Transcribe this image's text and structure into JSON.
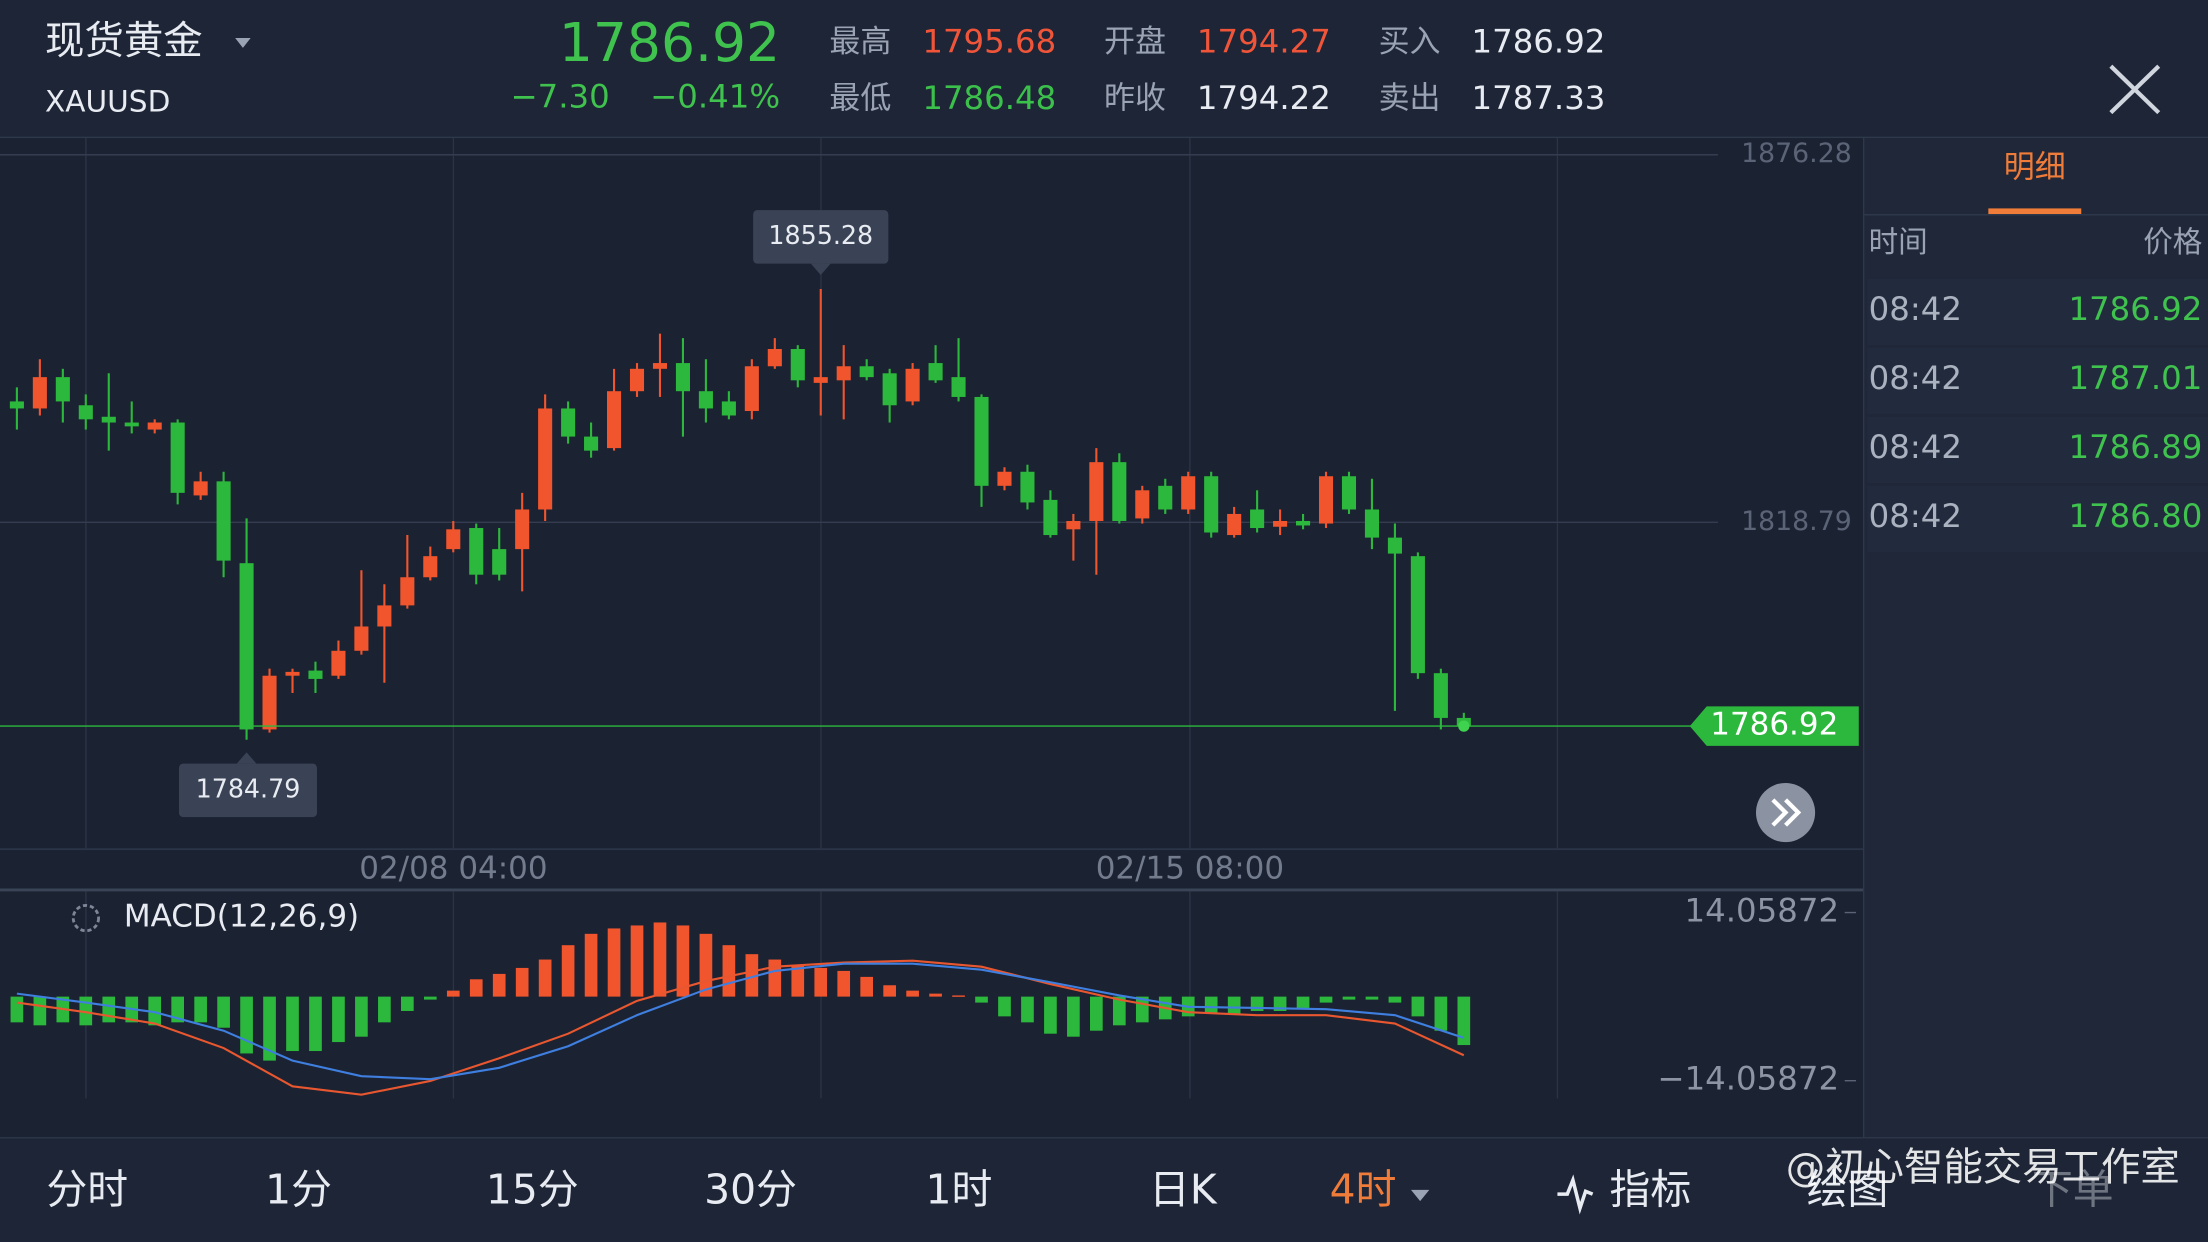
{
  "header": {
    "title": "现货黄金",
    "symbol": "XAUUSD",
    "price": "1786.92",
    "change": "−7.30",
    "change_pct": "−0.41%",
    "stats": [
      {
        "label": "最高",
        "value": "1795.68",
        "color": "#f0553a"
      },
      {
        "label": "最低",
        "value": "1786.48",
        "color": "#3cc04c"
      },
      {
        "label": "开盘",
        "value": "1794.27",
        "color": "#f0553a"
      },
      {
        "label": "昨收",
        "value": "1794.22",
        "color": "#e8ecf2"
      },
      {
        "label": "买入",
        "value": "1786.92",
        "color": "#e8ecf2"
      },
      {
        "label": "卖出",
        "value": "1787.33",
        "color": "#e8ecf2"
      }
    ]
  },
  "chart_data": [
    {
      "type": "candlestick",
      "up_color": "#f0552e",
      "down_color": "#2cb83c",
      "open": [
        1837.7,
        1836.6,
        1841.5,
        1837.1,
        1835.3,
        1834.4,
        1833.3,
        1834.4,
        1823.0,
        1825.2,
        1812.4,
        1786.4,
        1794.8,
        1795.6,
        1794.8,
        1798.7,
        1802.5,
        1805.8,
        1810.2,
        1814.6,
        1817.9,
        1814.6,
        1814.6,
        1820.8,
        1836.6,
        1832.2,
        1830.4,
        1839.3,
        1842.8,
        1843.7,
        1839.3,
        1837.7,
        1836.2,
        1843.2,
        1845.9,
        1840.6,
        1841.0,
        1843.2,
        1842.1,
        1837.7,
        1843.7,
        1841.5,
        1838.4,
        1824.5,
        1826.7,
        1822.3,
        1817.7,
        1819.0,
        1828.2,
        1819.4,
        1824.5,
        1820.8,
        1826.0,
        1816.8,
        1820.8,
        1818.1,
        1819.0,
        1818.6,
        1826.0,
        1820.8,
        1816.4,
        1813.5,
        1795.2,
        1788.2
      ],
      "high": [
        1839.9,
        1844.3,
        1842.8,
        1838.8,
        1842.1,
        1837.7,
        1834.9,
        1834.9,
        1826.7,
        1826.7,
        1819.4,
        1795.9,
        1795.9,
        1797.0,
        1800.3,
        1811.3,
        1809.1,
        1816.8,
        1815.0,
        1819.0,
        1818.6,
        1817.9,
        1823.4,
        1838.8,
        1837.7,
        1834.4,
        1842.8,
        1843.7,
        1848.3,
        1847.6,
        1844.3,
        1839.3,
        1844.3,
        1847.6,
        1846.5,
        1855.28,
        1846.5,
        1844.3,
        1842.8,
        1843.7,
        1846.5,
        1847.6,
        1838.8,
        1827.4,
        1827.8,
        1823.8,
        1820.1,
        1830.4,
        1829.6,
        1824.5,
        1825.6,
        1826.7,
        1826.7,
        1821.2,
        1823.8,
        1820.8,
        1820.1,
        1826.7,
        1826.7,
        1825.6,
        1818.6,
        1814.1,
        1795.9,
        1789.0
      ],
      "low": [
        1833.3,
        1835.5,
        1834.4,
        1833.3,
        1830.0,
        1832.7,
        1832.7,
        1821.6,
        1822.3,
        1810.2,
        1784.79,
        1785.9,
        1792.1,
        1792.1,
        1794.3,
        1798.1,
        1793.7,
        1805.3,
        1809.7,
        1814.1,
        1809.1,
        1809.7,
        1808.0,
        1819.0,
        1831.1,
        1828.9,
        1830.0,
        1838.4,
        1838.4,
        1832.2,
        1834.4,
        1834.9,
        1834.9,
        1842.8,
        1839.9,
        1835.5,
        1834.9,
        1841.0,
        1834.4,
        1837.1,
        1840.6,
        1837.7,
        1821.2,
        1823.8,
        1820.8,
        1816.4,
        1812.8,
        1810.6,
        1818.6,
        1818.6,
        1820.1,
        1820.1,
        1816.4,
        1816.4,
        1817.2,
        1816.8,
        1817.7,
        1817.9,
        1820.1,
        1814.6,
        1789.3,
        1794.3,
        1786.4,
        1786.5
      ],
      "close": [
        1836.6,
        1841.5,
        1837.7,
        1834.9,
        1834.4,
        1833.8,
        1834.4,
        1823.4,
        1825.2,
        1812.8,
        1786.4,
        1794.8,
        1795.4,
        1794.3,
        1798.7,
        1802.5,
        1805.8,
        1810.2,
        1813.5,
        1817.7,
        1810.6,
        1810.6,
        1820.8,
        1836.6,
        1832.2,
        1830.0,
        1839.3,
        1842.8,
        1843.7,
        1839.3,
        1836.6,
        1835.5,
        1843.2,
        1845.9,
        1841.0,
        1841.5,
        1843.2,
        1841.5,
        1837.1,
        1842.8,
        1841.0,
        1838.4,
        1824.5,
        1826.7,
        1821.9,
        1816.8,
        1819.0,
        1828.2,
        1819.0,
        1823.8,
        1820.8,
        1826.0,
        1817.2,
        1820.1,
        1817.9,
        1819.0,
        1818.3,
        1826.0,
        1820.8,
        1816.4,
        1813.9,
        1795.2,
        1788.2,
        1786.92
      ],
      "ylim": [
        1767.9,
        1878.9
      ],
      "yticks": [
        1876.28,
        1818.79
      ],
      "grid": true,
      "xtick_labels": [
        "02/08 04:00",
        "02/15 08:00"
      ]
    },
    {
      "type": "macd",
      "title": "MACD(12,26,9)",
      "up_color": "#f0552e",
      "down_color": "#2cb83c",
      "histogram": [
        -4.3,
        -4.8,
        -4.3,
        -4.8,
        -4.3,
        -4.3,
        -4.8,
        -4.3,
        -4.3,
        -5.2,
        -9.5,
        -10.7,
        -9.1,
        -9.1,
        -7.6,
        -6.7,
        -4.3,
        -2.4,
        -0.5,
        1.0,
        2.9,
        3.8,
        4.8,
        6.2,
        8.6,
        10.5,
        11.4,
        11.9,
        12.4,
        11.9,
        10.5,
        8.6,
        7.1,
        6.2,
        5.2,
        4.8,
        4.3,
        3.3,
        1.9,
        1.0,
        0.5,
        0.2,
        -1.0,
        -3.3,
        -4.3,
        -6.2,
        -6.7,
        -5.7,
        -4.8,
        -4.3,
        -3.8,
        -3.3,
        -2.9,
        -2.9,
        -2.4,
        -2.4,
        -1.9,
        -1.0,
        -0.5,
        -0.5,
        -1.0,
        -3.3,
        -5.7,
        -8.1
      ],
      "lines": [
        {
          "color": "#e8572f",
          "values": [
            -1.0,
            -2.6,
            -4.5,
            -8.6,
            -15.0,
            -16.4,
            -14.1,
            -10.3,
            -6.2,
            -0.7,
            2.6,
            5.0,
            5.7,
            6.0,
            5.0,
            2.1,
            -0.5,
            -2.6,
            -3.1,
            -3.1,
            -4.5,
            -9.8
          ]
        },
        {
          "color": "#3f7fe0",
          "values": [
            0.5,
            -1.0,
            -2.6,
            -5.7,
            -10.7,
            -13.3,
            -13.8,
            -11.9,
            -8.3,
            -3.1,
            1.2,
            4.3,
            5.5,
            5.5,
            4.5,
            2.4,
            0.2,
            -1.7,
            -1.9,
            -2.1,
            -3.1,
            -6.9
          ]
        }
      ],
      "ylim": [
        -22.9,
        17.6
      ],
      "yticks": [
        14.05872,
        {
          "value": -14.05872,
          "label": "−14.05872"
        }
      ]
    }
  ],
  "detail": {
    "tab": "明细",
    "columns": [
      "时间",
      "价格"
    ],
    "rows": [
      [
        "08:42",
        "1786.92"
      ],
      [
        "08:42",
        "1787.01"
      ],
      [
        "08:42",
        "1786.89"
      ],
      [
        "08:42",
        "1786.80"
      ]
    ]
  },
  "toolbar": [
    "分时",
    "1分",
    "15分",
    "30分",
    "1时",
    "日K",
    "4时",
    "指标",
    "绘图",
    "下单"
  ],
  "watermark": "@初心智能交易工作室"
}
